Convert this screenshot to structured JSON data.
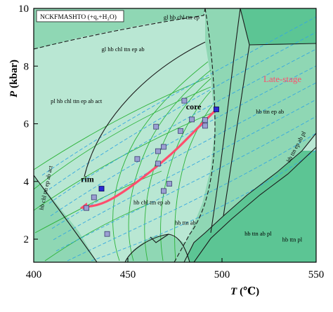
{
  "chart_data": {
    "type": "pseudosection",
    "system_label": "NCKFMASHTO (+q,+H₂O)",
    "xlabel_var": "T",
    "xlabel_unit": "(℃)",
    "ylabel_var": "P",
    "ylabel_unit": "(kbar)",
    "xlim": [
      400,
      550
    ],
    "ylim": [
      1.2,
      10
    ],
    "xticks": [
      400,
      450,
      500,
      550
    ],
    "yticks": [
      2,
      4,
      6,
      8,
      10
    ],
    "palette": {
      "light": "#b9e7d3",
      "mid": "#8fd7b4",
      "dark": "#5cc594",
      "boundary": "#1a1a1a",
      "isopleth_green": "#2db33a",
      "isopleth_blue": "#35a8e0",
      "path": "#ff4d6d",
      "sample_fill": "#9b9fd2",
      "sample_edge": "#3b3b70",
      "endpoint_fill": "#2b2ad6"
    },
    "field_labels": [
      {
        "text": "gl hb chl ttn ep",
        "T": 469,
        "P": 9.62
      },
      {
        "text": "gl hb chl ttn ep ab",
        "T": 436,
        "P": 8.52
      },
      {
        "text": "pl hb chl ttn ep ab act",
        "T": 409,
        "P": 6.72
      },
      {
        "text": "hb chl ttn ep ab act",
        "T": 405,
        "P": 3.0,
        "rotate": -78
      },
      {
        "text": "hb ttn ep ab",
        "T": 518,
        "P": 6.35
      },
      {
        "text": "hb chl ttn ep ab",
        "T": 453,
        "P": 3.2
      },
      {
        "text": "hb ttn ab",
        "T": 475,
        "P": 2.5
      },
      {
        "text": "hb ttn ab pl",
        "T": 512,
        "P": 2.12
      },
      {
        "text": "hb ttn pl",
        "T": 532,
        "P": 1.92
      },
      {
        "text": "hb ttn ep ab pl",
        "T": 536,
        "P": 4.65,
        "rotate": -62
      }
    ],
    "annotations": [
      {
        "text": "Late-stage",
        "T": 522,
        "P": 7.45,
        "role": "stage"
      },
      {
        "text": "core",
        "T": 489,
        "P": 6.5,
        "role": "point-label"
      },
      {
        "text": "rim",
        "T": 432,
        "P": 3.98,
        "role": "point-label"
      }
    ],
    "samples": [
      {
        "T": 480,
        "P": 6.8
      },
      {
        "T": 484,
        "P": 6.15
      },
      {
        "T": 491,
        "P": 6.13
      },
      {
        "T": 478,
        "P": 5.75
      },
      {
        "T": 465,
        "P": 5.9
      },
      {
        "T": 491,
        "P": 5.93
      },
      {
        "T": 469,
        "P": 5.2
      },
      {
        "T": 466,
        "P": 5.05
      },
      {
        "T": 455,
        "P": 4.78
      },
      {
        "T": 466,
        "P": 4.62
      },
      {
        "T": 472,
        "P": 3.92
      },
      {
        "T": 469,
        "P": 3.67
      },
      {
        "T": 432,
        "P": 3.45
      },
      {
        "T": 428,
        "P": 3.08
      },
      {
        "T": 439,
        "P": 2.18
      }
    ],
    "endpoints": [
      {
        "name": "core",
        "T": 497,
        "P": 6.5
      },
      {
        "name": "rim",
        "T": 436,
        "P": 3.75
      }
    ],
    "path": [
      {
        "T": 497,
        "P": 6.5
      },
      {
        "T": 487,
        "P": 5.85
      },
      {
        "T": 475,
        "P": 5.05
      },
      {
        "T": 461,
        "P": 4.28
      },
      {
        "T": 447,
        "P": 3.6
      },
      {
        "T": 436,
        "P": 3.2
      },
      {
        "T": 426,
        "P": 3.1
      }
    ]
  }
}
